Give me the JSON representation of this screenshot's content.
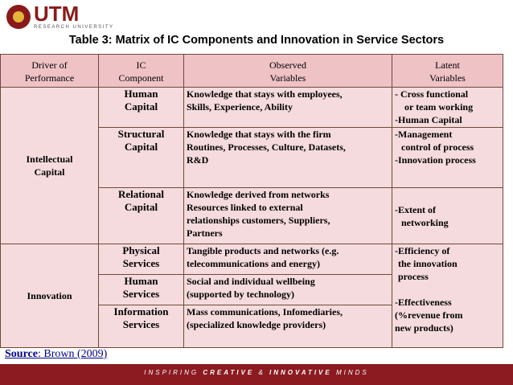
{
  "logo": {
    "name": "UTM",
    "subtitle": "RESEARCH UNIVERSITY"
  },
  "title": "Table 3: Matrix of IC Components and Innovation in Service Sectors",
  "headers": {
    "driver": [
      "Driver of",
      "Performance"
    ],
    "component": [
      "IC",
      "Component"
    ],
    "observed": [
      "Observed",
      "Variables"
    ],
    "latent": [
      "Latent",
      "Variables"
    ]
  },
  "drivers": {
    "intellectual": [
      "Intellectual",
      "Capital"
    ],
    "innovation": "Innovation"
  },
  "rows": [
    {
      "component": [
        "Human",
        "Capital"
      ],
      "observed": [
        "Knowledge that stays with employees,",
        "Skills, Experience, Ability"
      ],
      "latent": [
        "- Cross functional",
        "or team working",
        "-Human Capital"
      ]
    },
    {
      "component": [
        "Structural",
        "Capital"
      ],
      "observed": [
        "Knowledge that stays with the firm",
        "Routines, Processes, Culture, Datasets,",
        "R&D"
      ],
      "latent": [
        "-Management",
        "control of process",
        "-Innovation process"
      ]
    },
    {
      "component": [
        "Relational",
        "Capital"
      ],
      "observed": [
        "Knowledge derived from networks",
        "Resources linked to external",
        "relationships customers, Suppliers,",
        "Partners"
      ],
      "latent": [
        "-Extent of",
        "networking"
      ]
    },
    {
      "component": [
        "Physical",
        "Services"
      ],
      "observed": [
        "Tangible products and networks (e.g.",
        "telecommunications and energy)"
      ]
    },
    {
      "component": [
        "Human",
        "Services"
      ],
      "observed": [
        "Social and individual wellbeing",
        "(supported by technology)"
      ]
    },
    {
      "component": [
        "Information",
        "Services"
      ],
      "observed": [
        "Mass communications, Infomediaries,",
        "(specialized knowledge providers)"
      ]
    }
  ],
  "innovation_latent": [
    "-Efficiency of",
    "the innovation",
    "process",
    "-Effectiveness",
    "(%revenue from",
    "new products)"
  ],
  "source": {
    "label": "Source",
    "text": ": Brown (2009)"
  },
  "footer": {
    "tagline_a": "INSPIRING ",
    "tagline_b": "CREATIVE",
    "tagline_c": " & ",
    "tagline_d": "INNOVATIVE",
    "tagline_e": " MINDS"
  }
}
